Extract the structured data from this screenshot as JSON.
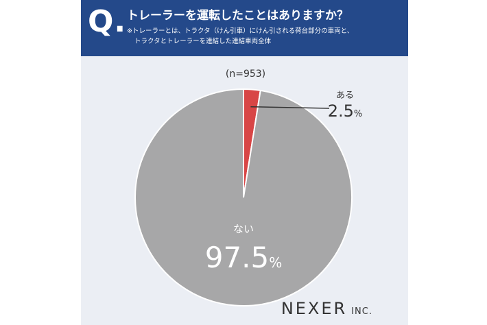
{
  "header": {
    "q_mark": "Q.",
    "question": "トレーラーを運転したことはありますか？",
    "note_line1": "※トレーラーとは、トラクタ（けん引車）にけん引される荷台部分の車両と、",
    "note_line2": "トラクタとトレーラーを連結した連結車両全体"
  },
  "sample": "(n=953)",
  "brand": {
    "name": "NEXER",
    "suffix": "INC."
  },
  "colors": {
    "header_bg": "#24498a",
    "card_bg": "#ebeef4",
    "slice_yes": "#d84646",
    "slice_no": "#a7a7a8",
    "text": "#333333"
  },
  "chart_data": {
    "type": "pie",
    "title": "トレーラーを運転したことはありますか？",
    "slices": [
      {
        "label": "ある",
        "value": 2.5,
        "value_text": "2.5",
        "unit": "%",
        "color": "#d84646"
      },
      {
        "label": "ない",
        "value": 97.5,
        "value_text": "97.5",
        "unit": "%",
        "color": "#a7a7a8"
      }
    ]
  }
}
